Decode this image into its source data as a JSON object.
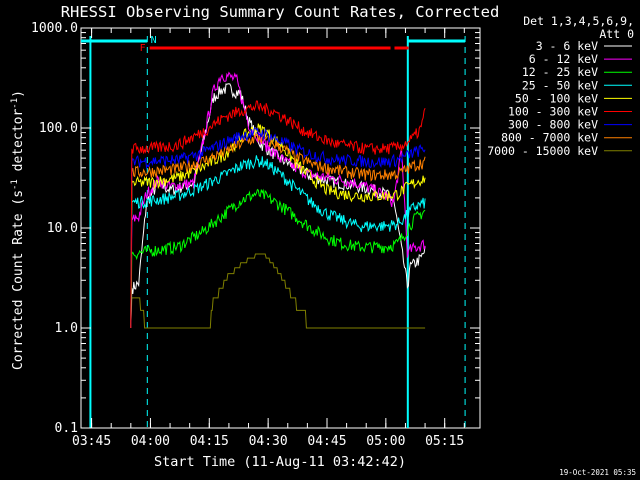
{
  "chart_data": {
    "type": "line",
    "title": "RHESSI Observing Summary Count Rates, Corrected",
    "xlabel": "Start Time (11-Aug-11 03:42:42)",
    "ylabel_main": "Corrected Count Rate (s",
    "ylabel_unit1": "-1",
    "ylabel_mid": " detector",
    "ylabel_unit2": "-1",
    "ylabel_end": ")",
    "yscale": "log",
    "ylim": [
      0.1,
      1000
    ],
    "xlim_minutes": [
      -2.7,
      99
    ],
    "yticks": [
      {
        "v": 1000,
        "label": "1000.0"
      },
      {
        "v": 100,
        "label": "100.0"
      },
      {
        "v": 10,
        "label": "10.0"
      },
      {
        "v": 1,
        "label": "1.0"
      },
      {
        "v": 0.1,
        "label": "0.1"
      }
    ],
    "xticks": [
      {
        "m": 0,
        "label": "03:45"
      },
      {
        "m": 15,
        "label": "04:00"
      },
      {
        "m": 30,
        "label": "04:15"
      },
      {
        "m": 45,
        "label": "04:30"
      },
      {
        "m": 60,
        "label": "04:45"
      },
      {
        "m": 75,
        "label": "05:00"
      },
      {
        "m": 90,
        "label": "05:15"
      }
    ],
    "timestamp": "19-Oct-2021 05:35",
    "legend_header": [
      "Det 1,3,4,5,6,9,",
      "Att 0"
    ],
    "legend_placement": "top-right, outside plot",
    "flags": {
      "fill_label": "F",
      "night_label": "N",
      "fill_color": "#ff0000",
      "night_color": "#00ffff"
    },
    "series": [
      {
        "name": "3 - 6 keV",
        "color": "#ffffff",
        "points": [
          [
            10,
            1
          ],
          [
            10.2,
            2.5
          ],
          [
            12,
            2.8
          ],
          [
            14,
            18
          ],
          [
            17,
            28
          ],
          [
            20,
            24
          ],
          [
            26,
            28
          ],
          [
            28,
            60
          ],
          [
            31,
            200
          ],
          [
            33,
            240
          ],
          [
            35,
            250
          ],
          [
            38,
            220
          ],
          [
            40,
            120
          ],
          [
            43,
            70
          ],
          [
            48,
            50
          ],
          [
            52,
            40
          ],
          [
            56,
            33
          ],
          [
            60,
            30
          ],
          [
            64,
            28
          ],
          [
            68,
            26
          ],
          [
            72,
            24
          ],
          [
            75,
            22
          ],
          [
            77,
            19
          ],
          [
            80.6,
            2.5
          ],
          [
            81,
            4
          ],
          [
            84,
            5
          ],
          [
            85,
            6
          ]
        ]
      },
      {
        "name": "6 - 12 keV",
        "color": "#ff00ff",
        "points": [
          [
            10,
            1
          ],
          [
            10.2,
            12
          ],
          [
            12,
            13
          ],
          [
            14,
            22
          ],
          [
            17,
            30
          ],
          [
            20,
            26
          ],
          [
            26,
            28
          ],
          [
            28,
            60
          ],
          [
            31,
            230
          ],
          [
            33,
            340
          ],
          [
            35,
            330
          ],
          [
            37,
            300
          ],
          [
            40,
            110
          ],
          [
            44,
            70
          ],
          [
            48,
            50
          ],
          [
            52,
            40
          ],
          [
            56,
            34
          ],
          [
            60,
            32
          ],
          [
            64,
            30
          ],
          [
            68,
            28
          ],
          [
            72,
            24
          ],
          [
            75,
            21
          ],
          [
            77,
            18
          ],
          [
            79,
            60
          ],
          [
            80.6,
            5
          ],
          [
            81,
            6
          ],
          [
            85,
            7
          ]
        ]
      },
      {
        "name": "12 - 25 keV",
        "color": "#00ff00",
        "points": [
          [
            10,
            1
          ],
          [
            10.2,
            5.5
          ],
          [
            16,
            6
          ],
          [
            22,
            6.5
          ],
          [
            28,
            9
          ],
          [
            34,
            14
          ],
          [
            38,
            19
          ],
          [
            42,
            22
          ],
          [
            44,
            21
          ],
          [
            48,
            17
          ],
          [
            52,
            13
          ],
          [
            56,
            10
          ],
          [
            60,
            8
          ],
          [
            64,
            7
          ],
          [
            68,
            6.5
          ],
          [
            72,
            6.5
          ],
          [
            75,
            6.5
          ],
          [
            78,
            7
          ],
          [
            80,
            9
          ],
          [
            82,
            12
          ],
          [
            85,
            15
          ]
        ]
      },
      {
        "name": "25 - 50 keV",
        "color": "#00ffff",
        "points": [
          [
            10,
            1
          ],
          [
            10.2,
            18
          ],
          [
            16,
            19
          ],
          [
            22,
            21
          ],
          [
            28,
            26
          ],
          [
            34,
            34
          ],
          [
            38,
            42
          ],
          [
            42,
            47
          ],
          [
            44,
            46
          ],
          [
            48,
            35
          ],
          [
            52,
            25
          ],
          [
            56,
            18
          ],
          [
            60,
            14
          ],
          [
            64,
            12
          ],
          [
            68,
            10.5
          ],
          [
            72,
            10.5
          ],
          [
            75,
            10.5
          ],
          [
            78,
            11
          ],
          [
            80,
            13
          ],
          [
            82,
            16
          ],
          [
            85,
            18
          ]
        ]
      },
      {
        "name": "50 - 100 keV",
        "color": "#ffff00",
        "points": [
          [
            10,
            1
          ],
          [
            10.2,
            28
          ],
          [
            16,
            29
          ],
          [
            22,
            32
          ],
          [
            28,
            40
          ],
          [
            34,
            55
          ],
          [
            38,
            80
          ],
          [
            42,
            100
          ],
          [
            44,
            95
          ],
          [
            48,
            70
          ],
          [
            52,
            45
          ],
          [
            56,
            32
          ],
          [
            60,
            24
          ],
          [
            64,
            22
          ],
          [
            68,
            21
          ],
          [
            72,
            21
          ],
          [
            75,
            21
          ],
          [
            78,
            22
          ],
          [
            80,
            25
          ],
          [
            82,
            28
          ],
          [
            85,
            32
          ]
        ]
      },
      {
        "name": "100 - 300 keV",
        "color": "#ff0000",
        "points": [
          [
            10,
            1
          ],
          [
            10.2,
            62
          ],
          [
            16,
            63
          ],
          [
            22,
            68
          ],
          [
            28,
            90
          ],
          [
            34,
            130
          ],
          [
            38,
            150
          ],
          [
            42,
            165
          ],
          [
            46,
            150
          ],
          [
            50,
            120
          ],
          [
            54,
            95
          ],
          [
            58,
            80
          ],
          [
            62,
            70
          ],
          [
            66,
            66
          ],
          [
            70,
            62
          ],
          [
            74,
            62
          ],
          [
            78,
            64
          ],
          [
            80,
            70
          ],
          [
            82,
            80
          ],
          [
            84,
            100
          ],
          [
            85,
            150
          ]
        ]
      },
      {
        "name": "300 - 800 keV",
        "color": "#0000ff",
        "points": [
          [
            10,
            1
          ],
          [
            10.2,
            46
          ],
          [
            16,
            47
          ],
          [
            22,
            48
          ],
          [
            28,
            56
          ],
          [
            34,
            72
          ],
          [
            38,
            84
          ],
          [
            42,
            90
          ],
          [
            44,
            88
          ],
          [
            48,
            75
          ],
          [
            52,
            62
          ],
          [
            56,
            55
          ],
          [
            60,
            50
          ],
          [
            64,
            48
          ],
          [
            68,
            47
          ],
          [
            72,
            46
          ],
          [
            75,
            46
          ],
          [
            78,
            48
          ],
          [
            80,
            52
          ],
          [
            82,
            57
          ],
          [
            85,
            62
          ]
        ]
      },
      {
        "name": "800 - 7000 keV",
        "color": "#ff8000",
        "points": [
          [
            10,
            1
          ],
          [
            10.2,
            36
          ],
          [
            16,
            37
          ],
          [
            22,
            39
          ],
          [
            28,
            46
          ],
          [
            34,
            58
          ],
          [
            38,
            70
          ],
          [
            42,
            80
          ],
          [
            44,
            78
          ],
          [
            48,
            65
          ],
          [
            52,
            52
          ],
          [
            56,
            44
          ],
          [
            60,
            40
          ],
          [
            64,
            37
          ],
          [
            68,
            35
          ],
          [
            72,
            34
          ],
          [
            75,
            34
          ],
          [
            78,
            35
          ],
          [
            80,
            38
          ],
          [
            82,
            42
          ],
          [
            85,
            46
          ]
        ]
      },
      {
        "name": "7000 - 15000 keV",
        "color": "#808000",
        "points": [
          [
            10,
            1
          ],
          [
            10.2,
            1.8
          ],
          [
            12,
            2.0
          ],
          [
            14,
            1.0
          ],
          [
            30,
            1
          ],
          [
            31,
            1.8
          ],
          [
            33,
            2.5
          ],
          [
            35,
            3.4
          ],
          [
            38,
            4.3
          ],
          [
            41,
            5.2
          ],
          [
            44,
            5.5
          ],
          [
            46,
            4.5
          ],
          [
            48,
            3.5
          ],
          [
            50,
            2.5
          ],
          [
            52,
            1.8
          ],
          [
            55,
            1.2
          ],
          [
            58,
            1
          ],
          [
            80.6,
            1
          ],
          [
            85,
            1
          ]
        ]
      }
    ]
  }
}
